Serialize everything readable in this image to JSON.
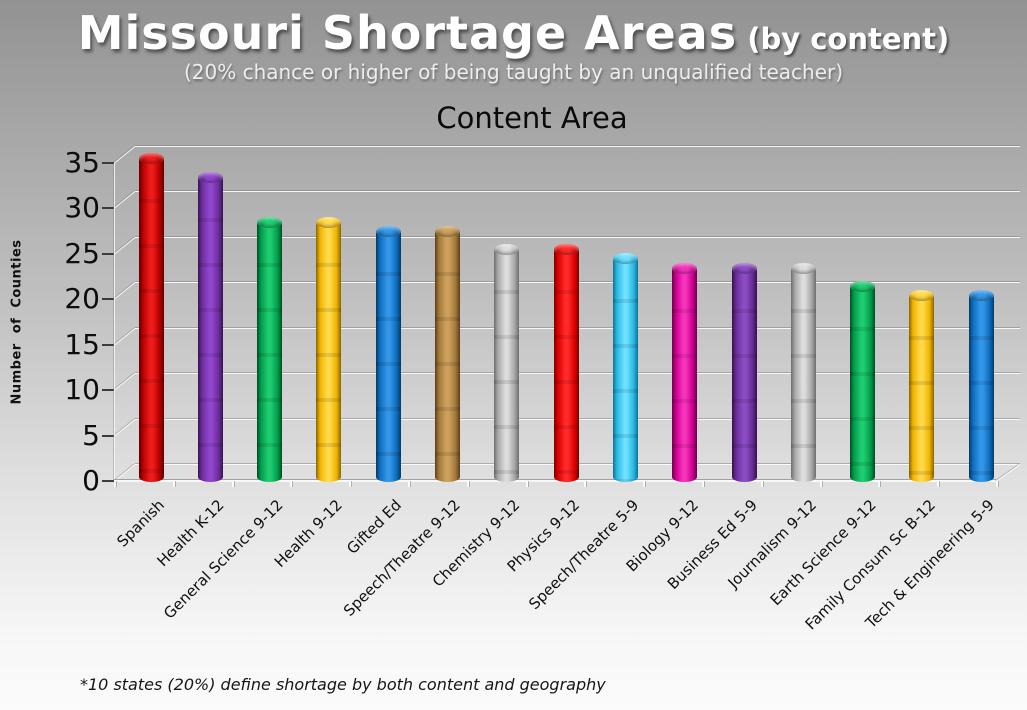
{
  "page": {
    "title_main": "Missouri Shortage Areas",
    "title_suffix": " (by content)",
    "subtitle": "(20% chance or higher of being taught by an unqualified teacher)",
    "footnote": "*10 states (20%) define shortage by both content and geography"
  },
  "chart_data": {
    "type": "bar",
    "style": "3d-cylinder",
    "title": "Content Area",
    "xlabel": "",
    "ylabel": "Number of Counties",
    "ylim": [
      0,
      35
    ],
    "yticks": [
      0,
      5,
      10,
      15,
      20,
      25,
      30,
      35
    ],
    "grid": true,
    "legend": false,
    "categories": [
      "Spanish",
      "Health K-12",
      "General Science 9-12",
      "Health 9-12",
      "Gifted Ed",
      "Speech/Theatre 9-12",
      "Chemistry 9-12",
      "Physics 9-12",
      "Speech/Theatre 5-9",
      "Biology 9-12",
      "Business Ed 5-9",
      "Journalism 9-12",
      "Earth Science 9-12",
      "Family Consum Sc B-12",
      "Tech & Engineering 5-9"
    ],
    "values": [
      35,
      33,
      28,
      28,
      27,
      27,
      25,
      25,
      24,
      23,
      23,
      23,
      21,
      20,
      20
    ],
    "bar_colors": [
      {
        "dark": "#5E0000",
        "base": "#B80000",
        "light": "#EE1C1C"
      },
      {
        "dark": "#3A1256",
        "base": "#6B2E9B",
        "light": "#9146CE"
      },
      {
        "dark": "#004D22",
        "base": "#009E4C",
        "light": "#1FCC70"
      },
      {
        "dark": "#8A6400",
        "base": "#F0B400",
        "light": "#FFD94A"
      },
      {
        "dark": "#053A66",
        "base": "#0E6DBE",
        "light": "#3397E8"
      },
      {
        "dark": "#5C3F17",
        "base": "#A3793B",
        "light": "#CDA05C"
      },
      {
        "dark": "#6E6E6E",
        "base": "#A8A8A8",
        "light": "#DCDCDC"
      },
      {
        "dark": "#7A0000",
        "base": "#DE0000",
        "light": "#FF2A2A"
      },
      {
        "dark": "#0E7394",
        "base": "#29B9E4",
        "light": "#6FE0FF"
      },
      {
        "dark": "#6E004A",
        "base": "#CC0090",
        "light": "#F633BB"
      },
      {
        "dark": "#351050",
        "base": "#662D94",
        "light": "#8C4CC4"
      },
      {
        "dark": "#6E6E6E",
        "base": "#A8A8A8",
        "light": "#DCDCDC"
      },
      {
        "dark": "#004D22",
        "base": "#009E4C",
        "light": "#1FCC70"
      },
      {
        "dark": "#8A6400",
        "base": "#F0B400",
        "light": "#FFD94A"
      },
      {
        "dark": "#053A66",
        "base": "#0E6DBE",
        "light": "#3397E8"
      }
    ]
  }
}
